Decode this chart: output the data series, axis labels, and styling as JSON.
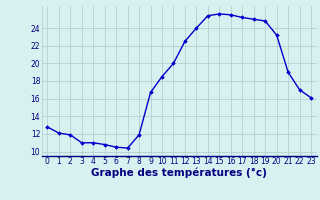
{
  "hours": [
    0,
    1,
    2,
    3,
    4,
    5,
    6,
    7,
    8,
    9,
    10,
    11,
    12,
    13,
    14,
    15,
    16,
    17,
    18,
    19,
    20,
    21,
    22,
    23
  ],
  "temperatures": [
    12.8,
    12.1,
    11.9,
    11.0,
    11.0,
    10.8,
    10.5,
    10.4,
    11.9,
    16.7,
    18.5,
    20.0,
    22.5,
    24.0,
    25.4,
    25.6,
    25.5,
    25.2,
    25.0,
    24.8,
    23.2,
    19.0,
    17.0,
    16.1
  ],
  "line_color": "#0000cc",
  "marker": "D",
  "marker_size": 1.8,
  "bg_color": "#d8f0f0",
  "grid_color": "#aacccc",
  "xlabel": "Graphe des températures (°c)",
  "xlabel_color": "#000080",
  "xlabel_fontsize": 7.5,
  "tick_color": "#000080",
  "tick_fontsize": 5.5,
  "ylim": [
    9.5,
    26.5
  ],
  "yticks": [
    10,
    12,
    14,
    16,
    18,
    20,
    22,
    24
  ],
  "xlim": [
    -0.5,
    23.5
  ],
  "xticks": [
    0,
    1,
    2,
    3,
    4,
    5,
    6,
    7,
    8,
    9,
    10,
    11,
    12,
    13,
    14,
    15,
    16,
    17,
    18,
    19,
    20,
    21,
    22,
    23
  ],
  "line_width": 1.0
}
